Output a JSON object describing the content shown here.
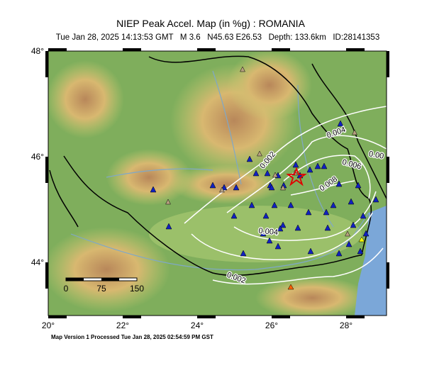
{
  "header": {
    "title": "NIEP Peak Accel. Map (in %g) : ROMANIA",
    "subtitle": "Tue Jan 28, 2025 14:13:53 GMT   M 3.6   N45.63 E26.53   Depth: 133.6km   ID:28141353"
  },
  "map": {
    "lon_ticks": [
      "20°",
      "22°",
      "24°",
      "26°",
      "28°"
    ],
    "lat_ticks": [
      "48°",
      "46°",
      "44°"
    ],
    "contour_labels": [
      "0.002",
      "0.004",
      "0.006",
      "0.008",
      "0.004",
      "0.002",
      "0.00"
    ],
    "scale_labels": [
      "0",
      "75",
      "150"
    ]
  },
  "footer": "Map Version 1 Processed Tue Jan 28, 2025 02:54:59 PM GST"
}
